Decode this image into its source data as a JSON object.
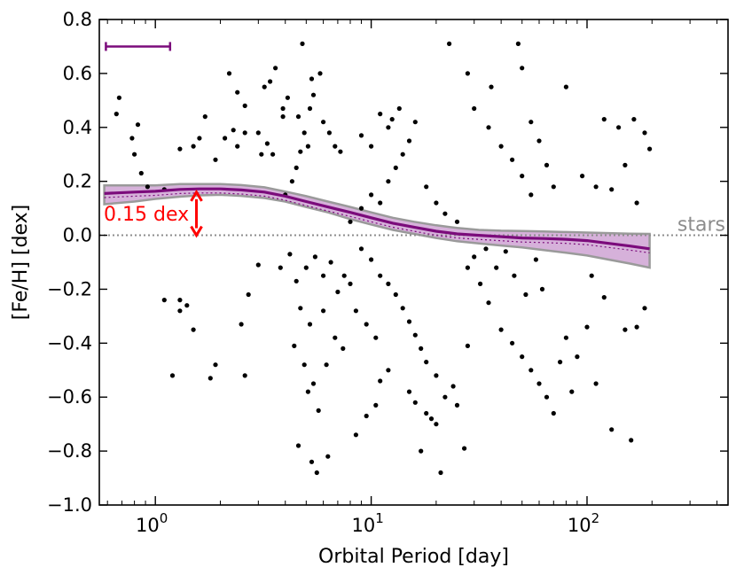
{
  "chart_data": {
    "type": "scatter",
    "xlabel": "Orbital Period [day]",
    "ylabel": "[Fe/H] [dex]",
    "xscale": "log",
    "xlim": [
      0.55,
      450
    ],
    "ylim": [
      -1.0,
      0.8
    ],
    "yticks": [
      -1.0,
      -0.8,
      -0.6,
      -0.4,
      -0.2,
      0.0,
      0.2,
      0.4,
      0.6,
      0.8
    ],
    "ytick_labels": [
      "−1.0",
      "−0.8",
      "−0.6",
      "−0.4",
      "−0.2",
      "0.0",
      "0.2",
      "0.4",
      "0.6",
      "0.8"
    ],
    "xticks": [
      {
        "value": 1,
        "base": "10",
        "exp": "0"
      },
      {
        "value": 10,
        "base": "10",
        "exp": "1"
      },
      {
        "value": 100,
        "base": "10",
        "exp": "2"
      }
    ],
    "colors": {
      "points": "#000000",
      "fit_line": "#7b0b7b",
      "band_fill": "#cfa3d3",
      "band_edge": "#9a9a9a",
      "stars_line": "#8c8c8c",
      "annotation": "#ff0000"
    },
    "reference_line": {
      "y": 0.0,
      "label": "stars"
    },
    "annotation": {
      "label": "0.15 dex",
      "x": 1.55,
      "y_from": 0.0,
      "y_to": 0.16
    },
    "error_bar": {
      "x_from": 0.59,
      "x_to": 1.17,
      "y": 0.7
    },
    "fit_line": {
      "name": "mean",
      "x": [
        0.58,
        0.8,
        1.0,
        1.3,
        1.6,
        2.0,
        2.5,
        3.2,
        4.0,
        5.0,
        6.3,
        8.0,
        10.0,
        12.6,
        15.8,
        20.0,
        25.0,
        31.6,
        40.0,
        50.0,
        63.0,
        80.0,
        100.0,
        126.0,
        158.0,
        195.0
      ],
      "y": [
        0.155,
        0.16,
        0.163,
        0.17,
        0.172,
        0.172,
        0.168,
        0.16,
        0.145,
        0.125,
        0.105,
        0.085,
        0.065,
        0.045,
        0.03,
        0.015,
        0.005,
        0.0,
        -0.005,
        -0.01,
        -0.012,
        -0.015,
        -0.02,
        -0.03,
        -0.04,
        -0.05
      ]
    },
    "fit_band": {
      "x": [
        0.58,
        0.8,
        1.0,
        1.3,
        1.6,
        2.0,
        2.5,
        3.2,
        4.0,
        5.0,
        6.3,
        8.0,
        10.0,
        12.6,
        15.8,
        20.0,
        25.0,
        31.6,
        40.0,
        50.0,
        63.0,
        80.0,
        100.0,
        126.0,
        158.0,
        195.0
      ],
      "upper": [
        0.185,
        0.185,
        0.185,
        0.19,
        0.19,
        0.19,
        0.186,
        0.178,
        0.162,
        0.145,
        0.125,
        0.105,
        0.085,
        0.065,
        0.05,
        0.037,
        0.027,
        0.02,
        0.017,
        0.016,
        0.014,
        0.012,
        0.01,
        0.008,
        0.006,
        0.005
      ],
      "lower": [
        0.115,
        0.125,
        0.135,
        0.143,
        0.148,
        0.15,
        0.146,
        0.138,
        0.125,
        0.105,
        0.085,
        0.06,
        0.04,
        0.02,
        0.005,
        -0.01,
        -0.022,
        -0.03,
        -0.038,
        -0.045,
        -0.055,
        -0.065,
        -0.075,
        -0.09,
        -0.105,
        -0.12
      ]
    },
    "points": [
      [
        0.68,
        0.51
      ],
      [
        0.66,
        0.45
      ],
      [
        0.78,
        0.36
      ],
      [
        0.83,
        0.41
      ],
      [
        0.8,
        0.3
      ],
      [
        0.86,
        0.23
      ],
      [
        0.92,
        0.18
      ],
      [
        1.1,
        0.17
      ],
      [
        1.3,
        0.32
      ],
      [
        1.1,
        -0.24
      ],
      [
        1.3,
        -0.24
      ],
      [
        1.3,
        -0.28
      ],
      [
        1.5,
        -0.35
      ],
      [
        1.4,
        -0.26
      ],
      [
        1.2,
        -0.52
      ],
      [
        1.8,
        -0.53
      ],
      [
        1.9,
        -0.48
      ],
      [
        1.7,
        0.44
      ],
      [
        1.5,
        0.33
      ],
      [
        1.6,
        0.36
      ],
      [
        1.9,
        0.28
      ],
      [
        2.1,
        0.36
      ],
      [
        2.3,
        0.39
      ],
      [
        2.4,
        0.33
      ],
      [
        2.6,
        0.38
      ],
      [
        2.2,
        0.6
      ],
      [
        2.6,
        0.48
      ],
      [
        2.4,
        0.53
      ],
      [
        2.7,
        -0.22
      ],
      [
        3.0,
        -0.11
      ],
      [
        2.5,
        -0.33
      ],
      [
        2.6,
        -0.52
      ],
      [
        3.0,
        0.38
      ],
      [
        3.1,
        0.3
      ],
      [
        3.3,
        0.34
      ],
      [
        3.5,
        0.3
      ],
      [
        3.4,
        0.57
      ],
      [
        3.6,
        0.62
      ],
      [
        3.9,
        0.47
      ],
      [
        4.1,
        0.51
      ],
      [
        3.9,
        0.44
      ],
      [
        3.2,
        0.55
      ],
      [
        4.0,
        0.15
      ],
      [
        4.3,
        0.2
      ],
      [
        4.5,
        0.25
      ],
      [
        4.7,
        0.31
      ],
      [
        4.9,
        0.38
      ],
      [
        5.1,
        0.33
      ],
      [
        4.6,
        0.44
      ],
      [
        5.2,
        0.47
      ],
      [
        4.8,
        0.71
      ],
      [
        5.4,
        0.52
      ],
      [
        5.3,
        0.58
      ],
      [
        5.8,
        0.6
      ],
      [
        6.0,
        0.42
      ],
      [
        6.4,
        0.38
      ],
      [
        6.8,
        0.33
      ],
      [
        7.2,
        0.31
      ],
      [
        3.8,
        -0.12
      ],
      [
        4.2,
        -0.07
      ],
      [
        4.5,
        -0.17
      ],
      [
        5.0,
        -0.12
      ],
      [
        5.5,
        -0.08
      ],
      [
        6.0,
        -0.15
      ],
      [
        6.5,
        -0.1
      ],
      [
        7.0,
        -0.21
      ],
      [
        7.5,
        -0.15
      ],
      [
        8.0,
        -0.18
      ],
      [
        5.2,
        -0.33
      ],
      [
        6.0,
        -0.28
      ],
      [
        6.8,
        -0.38
      ],
      [
        7.4,
        -0.42
      ],
      [
        4.7,
        -0.27
      ],
      [
        4.4,
        -0.41
      ],
      [
        4.9,
        -0.48
      ],
      [
        5.1,
        -0.58
      ],
      [
        5.4,
        -0.55
      ],
      [
        5.7,
        -0.65
      ],
      [
        6.2,
        -0.48
      ],
      [
        4.6,
        -0.78
      ],
      [
        5.3,
        -0.84
      ],
      [
        5.6,
        -0.88
      ],
      [
        6.3,
        -0.82
      ],
      [
        8.5,
        -0.74
      ],
      [
        9.5,
        -0.67
      ],
      [
        10.5,
        -0.63
      ],
      [
        11.0,
        -0.54
      ],
      [
        12.0,
        -0.5
      ],
      [
        8.0,
        0.05
      ],
      [
        9.0,
        0.1
      ],
      [
        10.0,
        0.15
      ],
      [
        11.0,
        0.12
      ],
      [
        12.0,
        0.2
      ],
      [
        13.0,
        0.25
      ],
      [
        14.0,
        0.3
      ],
      [
        15.0,
        0.35
      ],
      [
        16.0,
        0.42
      ],
      [
        9.0,
        0.37
      ],
      [
        10.0,
        0.33
      ],
      [
        11.0,
        0.45
      ],
      [
        12.0,
        0.4
      ],
      [
        13.5,
        0.47
      ],
      [
        12.5,
        0.43
      ],
      [
        9.0,
        -0.05
      ],
      [
        10.0,
        -0.09
      ],
      [
        11.0,
        -0.15
      ],
      [
        12.0,
        -0.18
      ],
      [
        13.0,
        -0.22
      ],
      [
        14.0,
        -0.27
      ],
      [
        15.0,
        -0.32
      ],
      [
        16.0,
        -0.37
      ],
      [
        17.0,
        -0.42
      ],
      [
        8.5,
        -0.28
      ],
      [
        9.5,
        -0.33
      ],
      [
        10.5,
        -0.38
      ],
      [
        18.0,
        -0.47
      ],
      [
        20.0,
        -0.52
      ],
      [
        15.0,
        -0.58
      ],
      [
        16.0,
        -0.62
      ],
      [
        18.0,
        -0.66
      ],
      [
        19.0,
        -0.68
      ],
      [
        21.0,
        -0.88
      ],
      [
        17.0,
        -0.8
      ],
      [
        20.0,
        -0.7
      ],
      [
        22.0,
        -0.6
      ],
      [
        24.0,
        -0.56
      ],
      [
        25.0,
        -0.63
      ],
      [
        27.0,
        -0.79
      ],
      [
        28.0,
        -0.41
      ],
      [
        18.0,
        0.18
      ],
      [
        20.0,
        0.12
      ],
      [
        22.0,
        0.08
      ],
      [
        25.0,
        0.05
      ],
      [
        23.0,
        0.71
      ],
      [
        28.0,
        0.6
      ],
      [
        30.0,
        0.47
      ],
      [
        35.0,
        0.4
      ],
      [
        40.0,
        0.33
      ],
      [
        45.0,
        0.28
      ],
      [
        50.0,
        0.22
      ],
      [
        55.0,
        0.15
      ],
      [
        48.0,
        0.71
      ],
      [
        50.0,
        0.62
      ],
      [
        55.0,
        0.42
      ],
      [
        60.0,
        0.35
      ],
      [
        65.0,
        0.26
      ],
      [
        70.0,
        0.18
      ],
      [
        36.0,
        0.55
      ],
      [
        32.0,
        -0.18
      ],
      [
        35.0,
        -0.25
      ],
      [
        40.0,
        -0.35
      ],
      [
        45.0,
        -0.4
      ],
      [
        50.0,
        -0.45
      ],
      [
        55.0,
        -0.5
      ],
      [
        60.0,
        -0.55
      ],
      [
        65.0,
        -0.6
      ],
      [
        70.0,
        -0.66
      ],
      [
        75.0,
        -0.47
      ],
      [
        80.0,
        -0.38
      ],
      [
        85.0,
        -0.58
      ],
      [
        90.0,
        -0.45
      ],
      [
        28.0,
        -0.12
      ],
      [
        30.0,
        -0.08
      ],
      [
        34.0,
        -0.05
      ],
      [
        38.0,
        -0.12
      ],
      [
        42.0,
        -0.06
      ],
      [
        46.0,
        -0.15
      ],
      [
        52.0,
        -0.22
      ],
      [
        58.0,
        -0.09
      ],
      [
        62.0,
        -0.2
      ],
      [
        80.0,
        0.55
      ],
      [
        95.0,
        0.22
      ],
      [
        110.0,
        0.18
      ],
      [
        120.0,
        0.43
      ],
      [
        140.0,
        0.4
      ],
      [
        165.0,
        0.43
      ],
      [
        185.0,
        0.38
      ],
      [
        195.0,
        0.32
      ],
      [
        150.0,
        0.26
      ],
      [
        130.0,
        0.17
      ],
      [
        170.0,
        0.12
      ],
      [
        100.0,
        -0.34
      ],
      [
        110.0,
        -0.55
      ],
      [
        130.0,
        -0.72
      ],
      [
        150.0,
        -0.35
      ],
      [
        160.0,
        -0.76
      ],
      [
        170.0,
        -0.34
      ],
      [
        185.0,
        -0.27
      ],
      [
        120.0,
        -0.23
      ],
      [
        105.0,
        -0.15
      ]
    ]
  }
}
